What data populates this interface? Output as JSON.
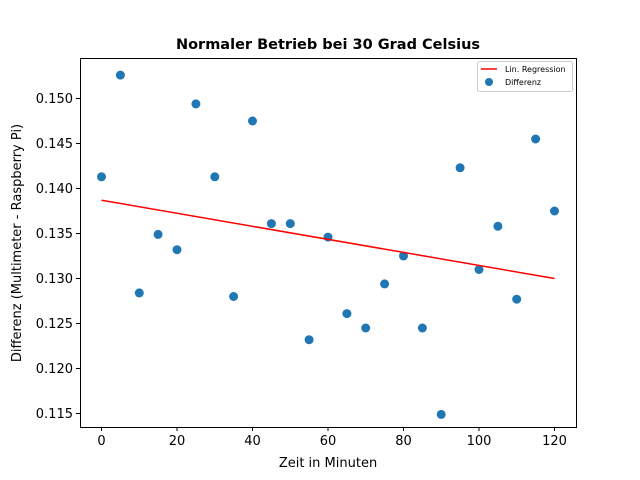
{
  "chart_data": {
    "type": "scatter",
    "title": "Normaler Betrieb bei 30 Grad Celsius",
    "xlabel": "Zeit in Minuten",
    "ylabel": "Differenz (Multimeter - Raspberry Pi)",
    "xlim": [
      -5.7,
      125.7
    ],
    "ylim": [
      0.1135,
      0.1545
    ],
    "xticks": [
      0,
      20,
      40,
      60,
      80,
      100,
      120
    ],
    "xtick_labels": [
      "0",
      "20",
      "40",
      "60",
      "80",
      "100",
      "120"
    ],
    "yticks": [
      0.115,
      0.12,
      0.125,
      0.13,
      0.135,
      0.14,
      0.145,
      0.15
    ],
    "ytick_labels": [
      "0.115",
      "0.120",
      "0.125",
      "0.130",
      "0.135",
      "0.140",
      "0.145",
      "0.150"
    ],
    "grid": false,
    "legend_position": "top-right",
    "series": [
      {
        "name": "Differenz",
        "kind": "scatter",
        "color": "#1f77b4",
        "x": [
          0,
          5,
          10,
          15,
          20,
          25,
          30,
          35,
          40,
          45,
          50,
          55,
          60,
          65,
          70,
          75,
          80,
          85,
          90,
          95,
          100,
          105,
          110,
          115,
          120
        ],
        "y": [
          0.1413,
          0.1526,
          0.1284,
          0.1349,
          0.1332,
          0.1494,
          0.1413,
          0.128,
          0.1475,
          0.1361,
          0.1361,
          0.1232,
          0.1346,
          0.1261,
          0.1245,
          0.1294,
          0.1325,
          0.1245,
          0.1149,
          0.1423,
          0.131,
          0.1358,
          0.1277,
          0.1455,
          0.1375
        ]
      },
      {
        "name": "Lin. Regression",
        "kind": "line",
        "color": "#ff0000",
        "x": [
          0,
          120
        ],
        "y": [
          0.1387,
          0.13
        ]
      }
    ]
  }
}
